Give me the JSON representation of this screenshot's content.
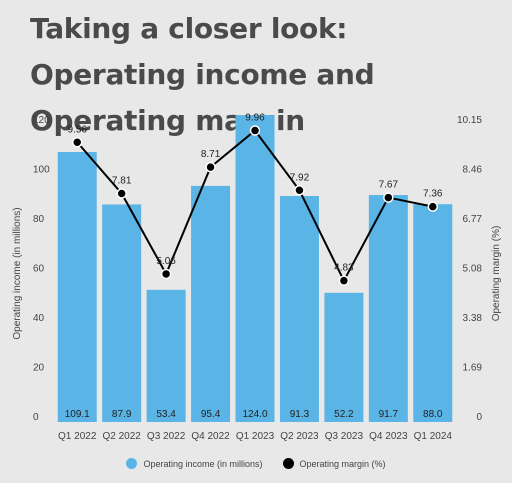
{
  "title": "Taking a closer look: Operating income and Operating margin",
  "colors": {
    "bar": "#5ab4e5",
    "line": "#000000",
    "background": "#e8e8e8"
  },
  "chart_data": {
    "type": "bar",
    "categories": [
      "Q1 2022",
      "Q2 2022",
      "Q3 2022",
      "Q4 2022",
      "Q1 2023",
      "Q2 2023",
      "Q3 2023",
      "Q4 2023",
      "Q1 2024"
    ],
    "series": [
      {
        "name": "Operating income (in millions)",
        "type": "bar",
        "axis": "left",
        "values": [
          109.1,
          87.9,
          53.4,
          95.4,
          124.0,
          91.3,
          52.2,
          91.7,
          88.0
        ],
        "labels": [
          "109.1",
          "87.9",
          "53.4",
          "95.4",
          "124.0",
          "91.3",
          "52.2",
          "91.7",
          "88.0"
        ]
      },
      {
        "name": "Operating margin (%)",
        "type": "line",
        "axis": "right",
        "values": [
          9.56,
          7.81,
          5.06,
          8.71,
          9.96,
          7.92,
          4.83,
          7.67,
          7.36
        ],
        "labels": [
          "9.56",
          "7.81",
          "5.06",
          "8.71",
          "9.96",
          "7.92",
          "4.83",
          "7.67",
          "7.36"
        ]
      }
    ],
    "ylabel": "Operating income (in millions)",
    "y2label": "Operating margin (%)",
    "ylim": [
      0,
      120
    ],
    "y2lim": [
      0,
      10.15
    ],
    "yticks": [
      "0",
      "20",
      "40",
      "60",
      "80",
      "100",
      "120"
    ],
    "y2ticks": [
      "0",
      "1.69",
      "3.38",
      "5.08",
      "6.77",
      "8.46",
      "10.15"
    ],
    "legend_position": "bottom"
  }
}
